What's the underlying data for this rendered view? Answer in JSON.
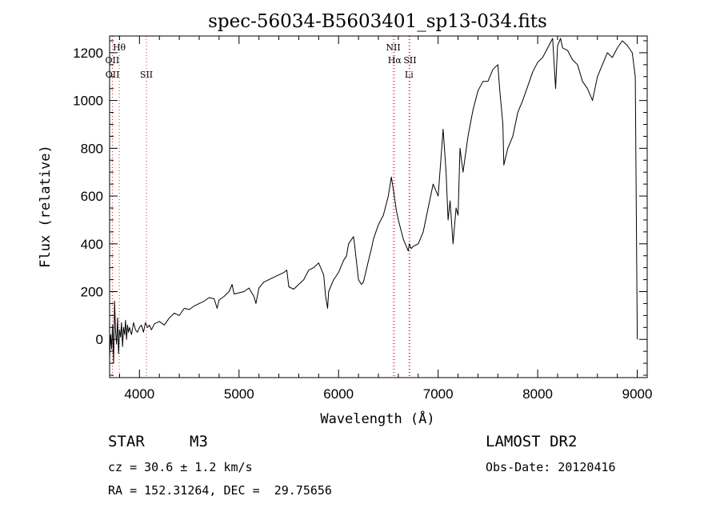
{
  "chart_data": {
    "type": "line",
    "title": "spec-56034-B5603401_sp13-034.fits",
    "xlabel": "Wavelength (Å)",
    "ylabel": "Flux (relative)",
    "xlim": [
      3700,
      9100
    ],
    "ylim": [
      -160,
      1270
    ],
    "x_ticks": [
      4000,
      5000,
      6000,
      7000,
      8000,
      9000
    ],
    "y_ticks": [
      0,
      200,
      400,
      600,
      800,
      1000,
      1200
    ],
    "grid": false,
    "line_color": "#000000",
    "marker_color": "#cc3333",
    "series": [
      {
        "x": [
          3700,
          3710,
          3720,
          3730,
          3740,
          3750,
          3760,
          3770,
          3780,
          3790,
          3800,
          3810,
          3820,
          3830,
          3840,
          3850,
          3860,
          3870,
          3880,
          3890,
          3900,
          3920,
          3940,
          3960,
          3980,
          4000,
          4020,
          4040,
          4060,
          4080,
          4100,
          4120,
          4150,
          4200,
          4250,
          4300,
          4350,
          4400,
          4450,
          4500,
          4550,
          4600,
          4650,
          4700,
          4750,
          4780,
          4800,
          4850,
          4900,
          4930,
          4950,
          5000,
          5050,
          5100,
          5150,
          5170,
          5200,
          5250,
          5300,
          5350,
          5400,
          5450,
          5480,
          5500,
          5550,
          5600,
          5650,
          5700,
          5750,
          5800,
          5850,
          5870,
          5890,
          5900,
          5950,
          6000,
          6050,
          6080,
          6100,
          6150,
          6160,
          6200,
          6230,
          6250,
          6300,
          6330,
          6350,
          6400,
          6450,
          6500,
          6530,
          6560,
          6580,
          6600,
          6650,
          6700,
          6710,
          6730,
          6750,
          6800,
          6850,
          6900,
          6950,
          6980,
          7000,
          7050,
          7080,
          7100,
          7120,
          7150,
          7180,
          7200,
          7220,
          7250,
          7300,
          7350,
          7400,
          7450,
          7500,
          7550,
          7600,
          7620,
          7650,
          7660,
          7700,
          7750,
          7800,
          7850,
          7900,
          7950,
          8000,
          8050,
          8100,
          8150,
          8180,
          8200,
          8230,
          8250,
          8300,
          8350,
          8400,
          8450,
          8500,
          8550,
          8600,
          8650,
          8700,
          8750,
          8800,
          8850,
          8900,
          8950,
          8980,
          9000
        ],
        "y": [
          -80,
          20,
          -40,
          60,
          -100,
          160,
          30,
          -20,
          90,
          -60,
          40,
          10,
          70,
          -30,
          50,
          20,
          80,
          0,
          60,
          30,
          50,
          20,
          70,
          40,
          30,
          50,
          60,
          30,
          70,
          50,
          60,
          40,
          65,
          75,
          60,
          90,
          110,
          100,
          130,
          125,
          140,
          150,
          160,
          175,
          170,
          130,
          165,
          180,
          200,
          230,
          190,
          195,
          200,
          215,
          180,
          150,
          215,
          240,
          250,
          260,
          270,
          280,
          290,
          220,
          210,
          230,
          250,
          290,
          300,
          320,
          270,
          180,
          130,
          200,
          250,
          280,
          330,
          350,
          400,
          430,
          400,
          250,
          230,
          240,
          330,
          380,
          420,
          480,
          520,
          600,
          680,
          600,
          540,
          500,
          420,
          370,
          400,
          380,
          390,
          400,
          450,
          550,
          650,
          620,
          600,
          880,
          700,
          500,
          580,
          400,
          550,
          520,
          800,
          700,
          850,
          960,
          1040,
          1080,
          1080,
          1130,
          1150,
          1040,
          900,
          730,
          800,
          850,
          950,
          1000,
          1060,
          1120,
          1160,
          1180,
          1220,
          1260,
          1050,
          1230,
          1260,
          1220,
          1210,
          1170,
          1150,
          1080,
          1050,
          1000,
          1100,
          1150,
          1200,
          1180,
          1220,
          1250,
          1230,
          1200,
          1100,
          0
        ]
      }
    ],
    "line_markers": [
      {
        "label": "Hθ",
        "x": 3797,
        "row": 1
      },
      {
        "label": "OII",
        "x": 3727,
        "row": 2
      },
      {
        "label": "OII",
        "x": 3729,
        "row": 3
      },
      {
        "label": "SII",
        "x": 4070,
        "row": 3
      },
      {
        "label": "NII",
        "x": 6549,
        "row": 1
      },
      {
        "label": "Hα",
        "x": 6563,
        "row": 2
      },
      {
        "label": "SII",
        "x": 6717,
        "row": 2
      },
      {
        "label": "Li",
        "x": 6708,
        "row": 3
      }
    ]
  },
  "info": {
    "object_type": "STAR",
    "subclass": "M3",
    "cz": "cz = 30.6 ± 1.2 km/s",
    "coords": "RA = 152.31264, DEC =  29.75656",
    "survey": "LAMOST DR2",
    "obs_date": "Obs-Date: 20120416"
  }
}
